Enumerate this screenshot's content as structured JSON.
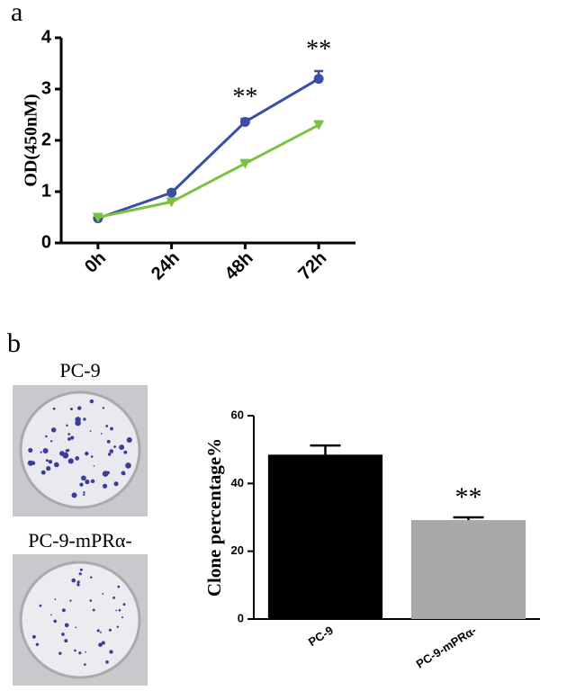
{
  "chart_data": [
    {
      "type": "line",
      "categories": [
        "0h",
        "24h",
        "48h",
        "72h"
      ],
      "y_label": "OD(450nM)",
      "ylim": [
        0,
        4
      ],
      "yticks": [
        0,
        1,
        2,
        3,
        4
      ],
      "series": [
        {
          "color": "#3b4ea6",
          "marker": "circle",
          "values": [
            0.48,
            0.98,
            2.36,
            3.2
          ],
          "errors": [
            0.03,
            0.04,
            0.06,
            0.15
          ]
        },
        {
          "color": "#7cc242",
          "marker": "triangle",
          "values": [
            0.5,
            0.8,
            1.55,
            2.3
          ],
          "errors": [
            0.03,
            0.03,
            0.03,
            0.07
          ]
        }
      ],
      "annotations": [
        null,
        null,
        "**",
        "**"
      ]
    },
    {
      "type": "bar",
      "categories": [
        "PC-9",
        "PC-9-mPRα-"
      ],
      "y_label": "Clone percentage%",
      "ylim": [
        0,
        60
      ],
      "yticks": [
        0,
        20,
        40,
        60
      ],
      "values": [
        48.5,
        29.2
      ],
      "errors": [
        2.7,
        0.8
      ],
      "colors": [
        "#000000",
        "#a9a9a9"
      ],
      "annotations": [
        null,
        "**"
      ]
    }
  ],
  "panel_labels": [
    "a",
    "b"
  ],
  "photo_labels": [
    "PC-9",
    "PC-9-mPRα-"
  ]
}
